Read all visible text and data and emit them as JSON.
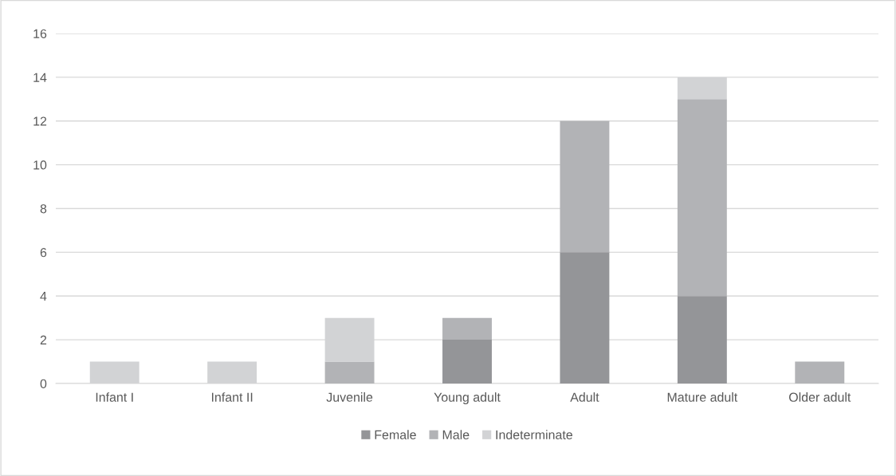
{
  "chart_data": {
    "type": "bar",
    "stacked": true,
    "categories": [
      "Infant I",
      "Infant II",
      "Juvenile",
      "Young adult",
      "Adult",
      "Mature adult",
      "Older adult"
    ],
    "series": [
      {
        "name": "Female",
        "color": "#949598",
        "values": [
          0,
          0,
          0,
          2,
          6,
          4,
          0
        ]
      },
      {
        "name": "Male",
        "color": "#b2b3b6",
        "values": [
          0,
          0,
          1,
          1,
          6,
          9,
          1
        ]
      },
      {
        "name": "Indeterminate",
        "color": "#d2d3d5",
        "values": [
          1,
          1,
          2,
          0,
          0,
          1,
          0
        ]
      }
    ],
    "ylim": [
      0,
      16
    ],
    "yticks": [
      0,
      2,
      4,
      6,
      8,
      10,
      12,
      14,
      16
    ],
    "grid": "y",
    "legend": "bottom"
  }
}
